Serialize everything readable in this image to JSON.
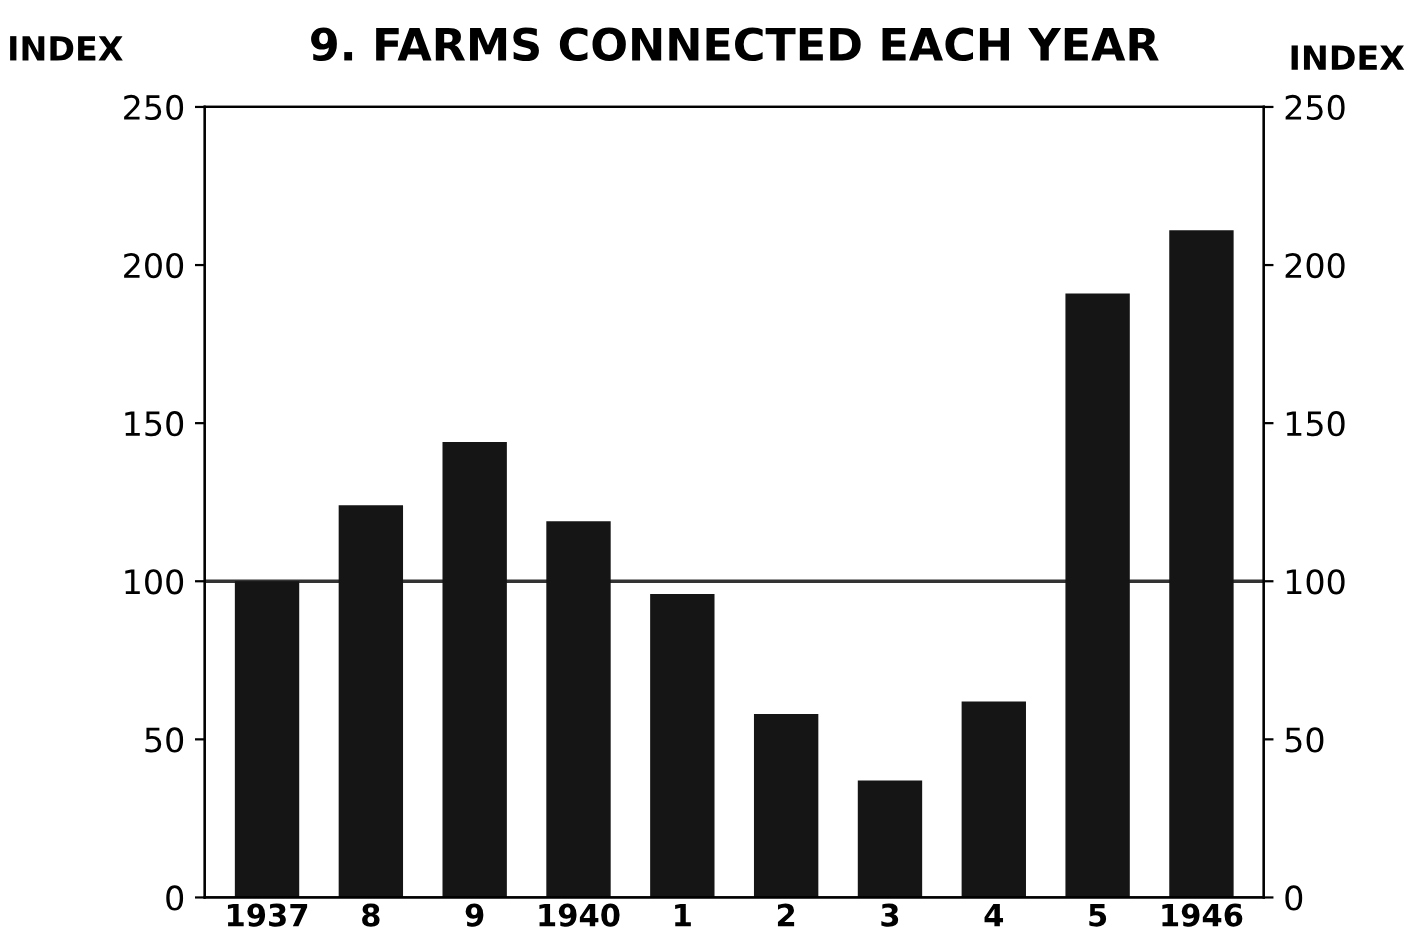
{
  "chart_data": {
    "type": "bar",
    "title": "9. FARMS CONNECTED EACH YEAR",
    "ylabel": "INDEX",
    "y2label": "INDEX",
    "categories": [
      "1937",
      "8",
      "9",
      "1940",
      "1",
      "2",
      "3",
      "4",
      "5",
      "1946"
    ],
    "values": [
      100,
      124,
      144,
      119,
      96,
      58,
      37,
      62,
      191,
      211
    ],
    "color": "#151515",
    "ylim": [
      0,
      250
    ],
    "yticks": [
      0,
      50,
      100,
      150,
      200,
      250
    ],
    "y2lim": [
      0,
      250
    ],
    "y2ticks": [
      0,
      50,
      100,
      150,
      200,
      250
    ],
    "ref_lines": [
      {
        "axis": "y",
        "value": 100,
        "color": "#333333",
        "line_style": "solid"
      }
    ],
    "grid": false
  }
}
